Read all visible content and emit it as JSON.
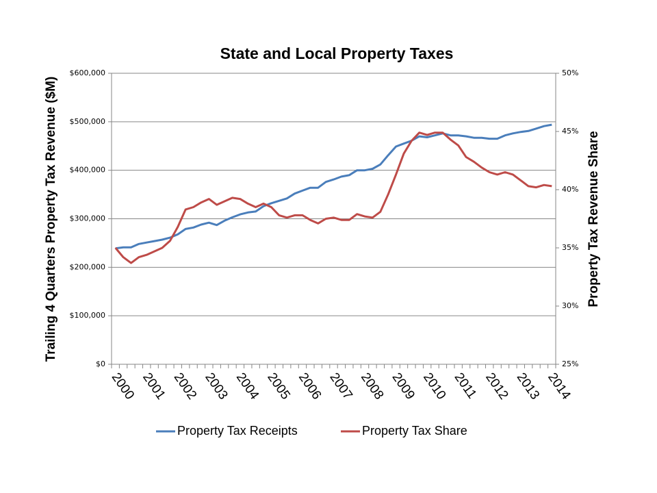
{
  "chart_data": {
    "type": "line",
    "title": "State and Local Property Taxes",
    "y_label": "Trailing 4 Quarters Property Tax Revenue ($M)",
    "y2_label": "Property Tax Revenue Share",
    "categories": [
      "2000",
      null,
      null,
      null,
      "2001",
      null,
      null,
      null,
      "2002",
      null,
      null,
      null,
      "2003",
      null,
      null,
      null,
      "2004",
      null,
      null,
      null,
      "2005",
      null,
      null,
      null,
      "2006",
      null,
      null,
      null,
      "2007",
      null,
      null,
      null,
      "2008",
      null,
      null,
      null,
      "2009",
      null,
      null,
      null,
      "2010",
      null,
      null,
      null,
      "2011",
      null,
      null,
      null,
      "2012",
      null,
      null,
      null,
      "2013",
      null,
      null,
      null,
      "2014"
    ],
    "ylim": [
      0,
      600000
    ],
    "yticks": [
      {
        "value": 0,
        "label": "$0"
      },
      {
        "value": 100000,
        "label": "$100,000"
      },
      {
        "value": 200000,
        "label": "$200,000"
      },
      {
        "value": 300000,
        "label": "$300,000"
      },
      {
        "value": 400000,
        "label": "$400,000"
      },
      {
        "value": 500000,
        "label": "$500,000"
      },
      {
        "value": 600000,
        "label": "$600,000"
      }
    ],
    "y2lim": [
      25,
      50
    ],
    "y2ticks": [
      {
        "value": 25,
        "label": "25%"
      },
      {
        "value": 30,
        "label": "30%"
      },
      {
        "value": 35,
        "label": "35%"
      },
      {
        "value": 40,
        "label": "40%"
      },
      {
        "value": 45,
        "label": "45%"
      },
      {
        "value": 50,
        "label": "50%"
      }
    ],
    "grid": true,
    "legend": "bottom",
    "series": [
      {
        "name": "Property Tax Receipts",
        "color": "#4a7ebb",
        "axis": "y",
        "values": [
          239000,
          241000,
          241000,
          248000,
          251000,
          254000,
          257000,
          261000,
          268000,
          279000,
          282000,
          288000,
          292000,
          287000,
          296000,
          303000,
          309000,
          313000,
          315000,
          326000,
          332000,
          337000,
          342000,
          352000,
          358000,
          364000,
          364000,
          376000,
          381000,
          387000,
          390000,
          400000,
          400000,
          403000,
          412000,
          431000,
          449000,
          455000,
          461000,
          470000,
          468000,
          472000,
          476000,
          472000,
          472000,
          470000,
          467000,
          467000,
          465000,
          465000,
          472000,
          476000,
          479000,
          481000,
          486000,
          491000,
          494000
        ]
      },
      {
        "name": "Property Tax Share",
        "color": "#be4b48",
        "axis": "y2",
        "values": [
          35.0,
          34.2,
          33.7,
          34.2,
          34.4,
          34.7,
          35.0,
          35.6,
          36.8,
          38.3,
          38.5,
          38.9,
          39.2,
          38.7,
          39.0,
          39.3,
          39.2,
          38.8,
          38.5,
          38.8,
          38.5,
          37.8,
          37.6,
          37.8,
          37.8,
          37.4,
          37.1,
          37.5,
          37.6,
          37.4,
          37.4,
          37.9,
          37.7,
          37.6,
          38.1,
          39.6,
          41.3,
          43.1,
          44.2,
          44.9,
          44.7,
          44.9,
          44.9,
          44.3,
          43.8,
          42.8,
          42.4,
          41.9,
          41.5,
          41.3,
          41.5,
          41.3,
          40.8,
          40.3,
          40.2,
          40.4,
          40.3
        ]
      }
    ]
  }
}
